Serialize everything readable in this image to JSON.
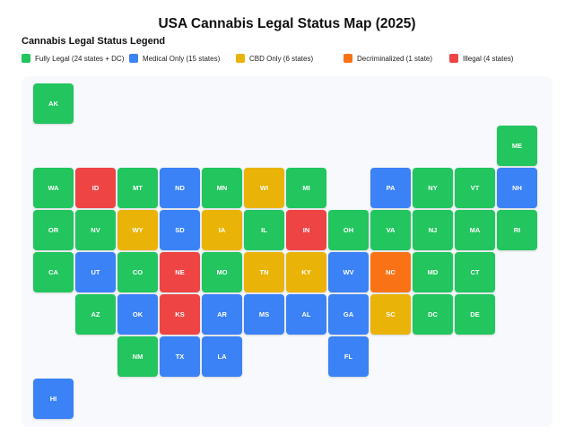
{
  "title": "USA Cannabis Legal Status Map (2025)",
  "legend_title": "Cannabis Legal Status Legend",
  "statuses": {
    "legal": {
      "label": "Fully Legal (24 states + DC)",
      "color": "#22c55e"
    },
    "medical": {
      "label": "Medical Only (15 states)",
      "color": "#3b82f6"
    },
    "cbd": {
      "label": "CBD Only (6 states)",
      "color": "#eab308"
    },
    "decrim": {
      "label": "Decriminalized (1 state)",
      "color": "#f97316"
    },
    "illegal": {
      "label": "Illegal (4 states)",
      "color": "#ef4444"
    }
  },
  "legend_order": [
    "legal",
    "medical",
    "cbd",
    "decrim",
    "illegal"
  ],
  "states": [
    {
      "code": "AK",
      "status": "legal",
      "row": 0,
      "col": 0
    },
    {
      "code": "ME",
      "status": "legal",
      "row": 1,
      "col": 11
    },
    {
      "code": "WA",
      "status": "legal",
      "row": 2,
      "col": 0
    },
    {
      "code": "ID",
      "status": "illegal",
      "row": 2,
      "col": 1
    },
    {
      "code": "MT",
      "status": "legal",
      "row": 2,
      "col": 2
    },
    {
      "code": "ND",
      "status": "medical",
      "row": 2,
      "col": 3
    },
    {
      "code": "MN",
      "status": "legal",
      "row": 2,
      "col": 4
    },
    {
      "code": "WI",
      "status": "cbd",
      "row": 2,
      "col": 5
    },
    {
      "code": "MI",
      "status": "legal",
      "row": 2,
      "col": 6
    },
    {
      "code": "PA",
      "status": "medical",
      "row": 2,
      "col": 8
    },
    {
      "code": "NY",
      "status": "legal",
      "row": 2,
      "col": 9
    },
    {
      "code": "VT",
      "status": "legal",
      "row": 2,
      "col": 10
    },
    {
      "code": "NH",
      "status": "medical",
      "row": 2,
      "col": 11
    },
    {
      "code": "OR",
      "status": "legal",
      "row": 3,
      "col": 0
    },
    {
      "code": "NV",
      "status": "legal",
      "row": 3,
      "col": 1
    },
    {
      "code": "WY",
      "status": "cbd",
      "row": 3,
      "col": 2
    },
    {
      "code": "SD",
      "status": "medical",
      "row": 3,
      "col": 3
    },
    {
      "code": "IA",
      "status": "cbd",
      "row": 3,
      "col": 4
    },
    {
      "code": "IL",
      "status": "legal",
      "row": 3,
      "col": 5
    },
    {
      "code": "IN",
      "status": "illegal",
      "row": 3,
      "col": 6
    },
    {
      "code": "OH",
      "status": "legal",
      "row": 3,
      "col": 7
    },
    {
      "code": "VA",
      "status": "legal",
      "row": 3,
      "col": 8
    },
    {
      "code": "NJ",
      "status": "legal",
      "row": 3,
      "col": 9
    },
    {
      "code": "MA",
      "status": "legal",
      "row": 3,
      "col": 10
    },
    {
      "code": "RI",
      "status": "legal",
      "row": 3,
      "col": 11
    },
    {
      "code": "CA",
      "status": "legal",
      "row": 4,
      "col": 0
    },
    {
      "code": "UT",
      "status": "medical",
      "row": 4,
      "col": 1
    },
    {
      "code": "CO",
      "status": "legal",
      "row": 4,
      "col": 2
    },
    {
      "code": "NE",
      "status": "illegal",
      "row": 4,
      "col": 3
    },
    {
      "code": "MO",
      "status": "legal",
      "row": 4,
      "col": 4
    },
    {
      "code": "TN",
      "status": "cbd",
      "row": 4,
      "col": 5
    },
    {
      "code": "KY",
      "status": "cbd",
      "row": 4,
      "col": 6
    },
    {
      "code": "WV",
      "status": "medical",
      "row": 4,
      "col": 7
    },
    {
      "code": "NC",
      "status": "decrim",
      "row": 4,
      "col": 8
    },
    {
      "code": "MD",
      "status": "legal",
      "row": 4,
      "col": 9
    },
    {
      "code": "CT",
      "status": "legal",
      "row": 4,
      "col": 10
    },
    {
      "code": "AZ",
      "status": "legal",
      "row": 5,
      "col": 1
    },
    {
      "code": "OK",
      "status": "medical",
      "row": 5,
      "col": 2
    },
    {
      "code": "KS",
      "status": "illegal",
      "row": 5,
      "col": 3
    },
    {
      "code": "AR",
      "status": "medical",
      "row": 5,
      "col": 4
    },
    {
      "code": "MS",
      "status": "medical",
      "row": 5,
      "col": 5
    },
    {
      "code": "AL",
      "status": "medical",
      "row": 5,
      "col": 6
    },
    {
      "code": "GA",
      "status": "medical",
      "row": 5,
      "col": 7
    },
    {
      "code": "SC",
      "status": "cbd",
      "row": 5,
      "col": 8
    },
    {
      "code": "DC",
      "status": "legal",
      "row": 5,
      "col": 9
    },
    {
      "code": "DE",
      "status": "legal",
      "row": 5,
      "col": 10
    },
    {
      "code": "NM",
      "status": "legal",
      "row": 6,
      "col": 2
    },
    {
      "code": "TX",
      "status": "medical",
      "row": 6,
      "col": 3
    },
    {
      "code": "LA",
      "status": "medical",
      "row": 6,
      "col": 4
    },
    {
      "code": "FL",
      "status": "medical",
      "row": 6,
      "col": 7
    },
    {
      "code": "HI",
      "status": "medical",
      "row": 7,
      "col": 0
    }
  ]
}
